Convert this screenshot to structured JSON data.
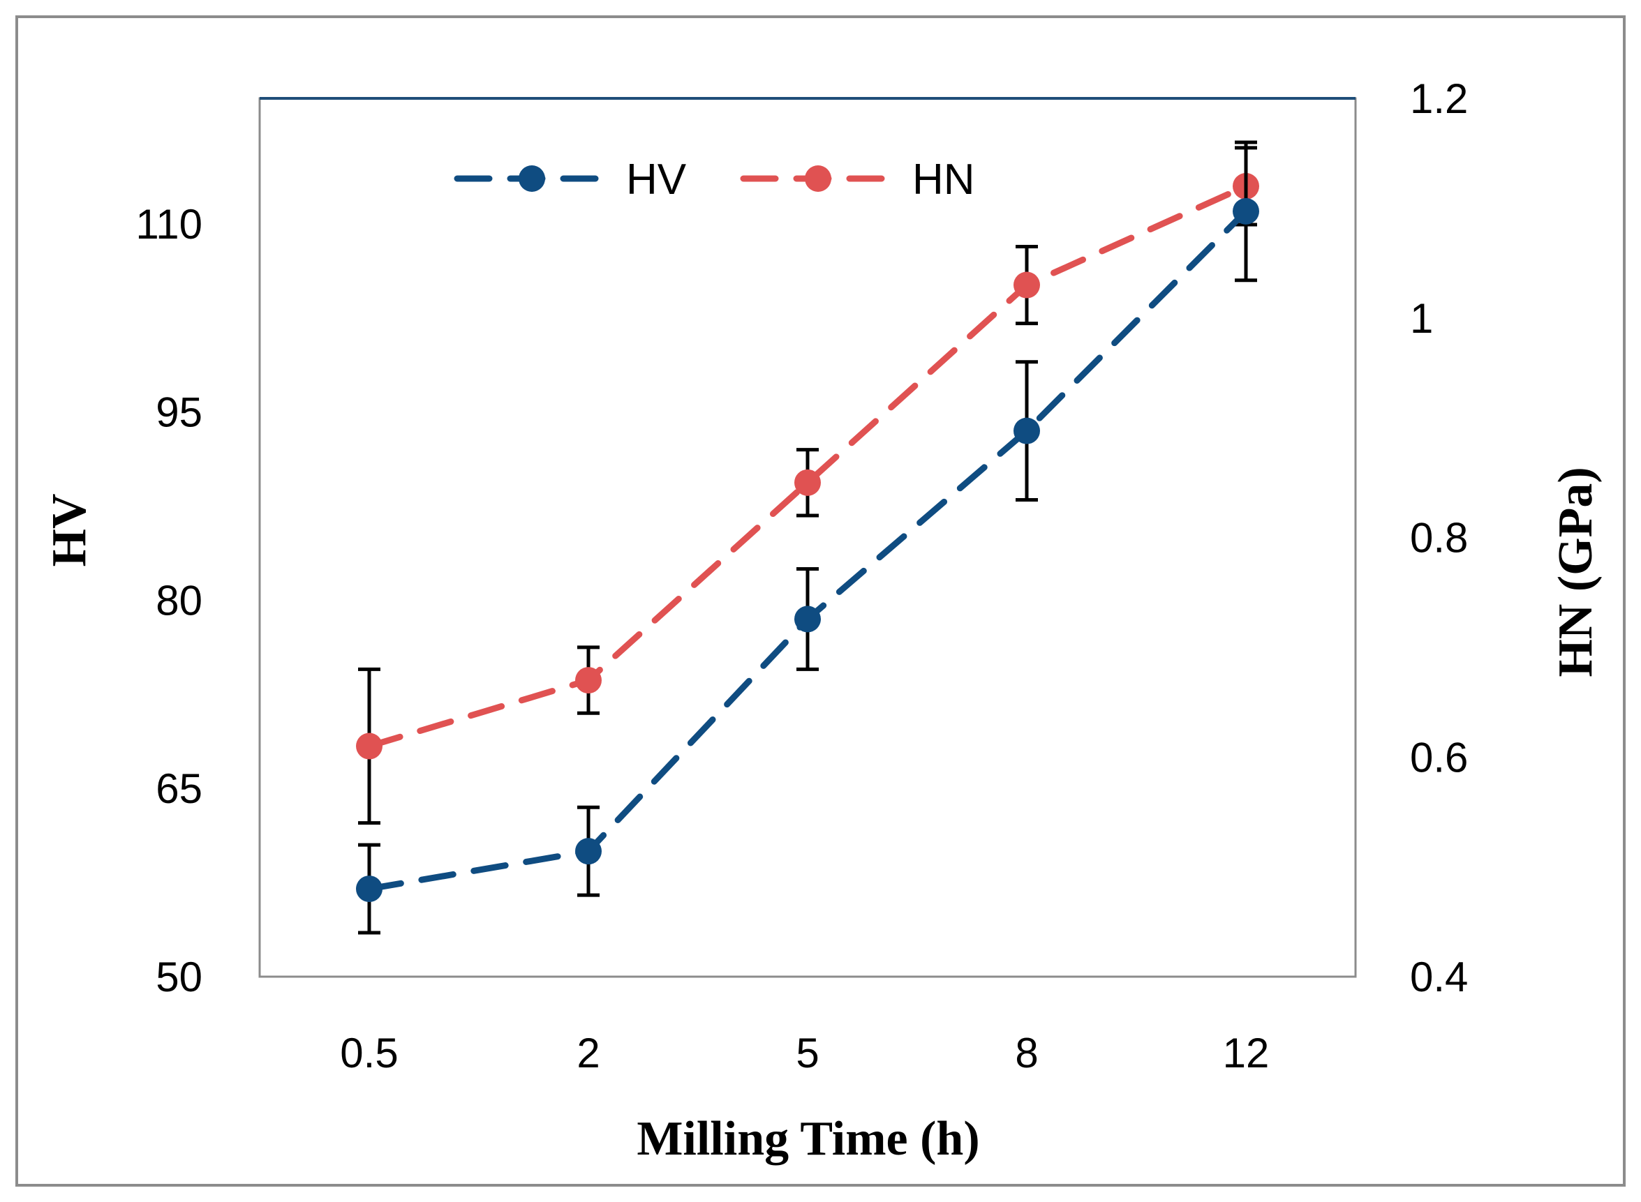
{
  "chart_data": {
    "type": "line",
    "categories": [
      "0.5",
      "2",
      "5",
      "8",
      "12"
    ],
    "xlabel": "Milling Time (h)",
    "ylabel": "HV",
    "y2label": "HN (GPa)",
    "ylim": [
      50,
      120
    ],
    "y2lim": [
      0.4,
      1.2
    ],
    "yticks": [
      "50",
      "65",
      "80",
      "95",
      "110"
    ],
    "yticks_values": [
      50,
      65,
      80,
      95,
      110
    ],
    "y2ticks": [
      "0.4",
      "0.6",
      "0.8",
      "1",
      "1.2"
    ],
    "y2ticks_values": [
      0.4,
      0.6,
      0.8,
      1.0,
      1.2
    ],
    "legend_position": "top-center",
    "series": [
      {
        "name": "HV",
        "axis": "left",
        "color": "#0f4c81",
        "values": [
          57,
          60,
          78.5,
          93.5,
          111
        ],
        "err_low": [
          3.5,
          3.5,
          4,
          5.5,
          5.5
        ],
        "err_high": [
          3.5,
          3.5,
          4,
          5.5,
          5.5
        ]
      },
      {
        "name": "HN",
        "axis": "right",
        "color": "#e05252",
        "values": [
          0.61,
          0.67,
          0.85,
          1.03,
          1.12
        ],
        "err_low": [
          0.07,
          0.03,
          0.03,
          0.035,
          0.035
        ],
        "err_high": [
          0.07,
          0.03,
          0.03,
          0.035,
          0.035
        ]
      }
    ]
  }
}
